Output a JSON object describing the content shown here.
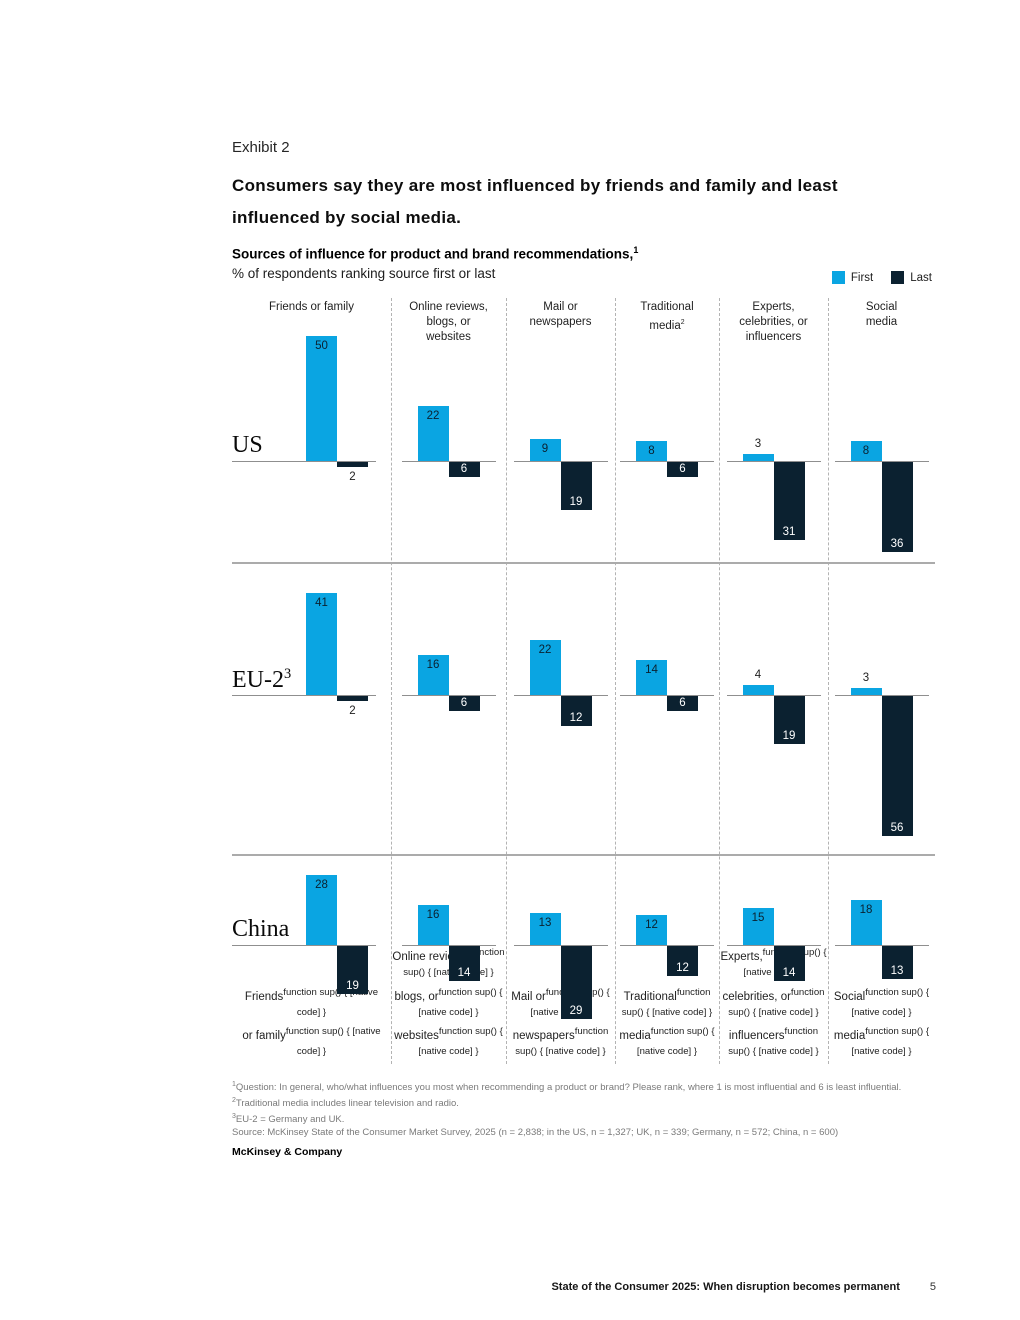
{
  "page": {
    "exhibit_label": "Exhibit 2",
    "title_lines": [
      "Consumers say they are most influenced by friends and family and least",
      "influenced by social media."
    ],
    "brand": "McKinsey & Company",
    "footer_title": "State of the Consumer 2025: When disruption becomes permanent",
    "footer_page": "5"
  },
  "colors": {
    "first": "#0AA5E2",
    "last": "#0B2130"
  },
  "chart_data": {
    "type": "bar",
    "title": "Sources of influence for product and brand recommendations,",
    "title_sup": "1",
    "subtitle": "% of respondents ranking source first or last",
    "legend": [
      "First",
      "Last"
    ],
    "legend_position": "top-right",
    "orientation": "diverging vertical: First above baseline, Last below baseline",
    "value_unit": "%",
    "categories": [
      "Friends or family",
      "Online reviews, blogs, or websites",
      "Mail or newspapers",
      "Traditional media",
      "Experts, celebrities, or influencers",
      "Social media"
    ],
    "groups": [
      {
        "region": "US",
        "region_sup": "",
        "series": [
          {
            "name": "First",
            "values": [
              50,
              22,
              9,
              8,
              3,
              8
            ]
          },
          {
            "name": "Last",
            "values": [
              2,
              6,
              19,
              6,
              31,
              36
            ]
          }
        ]
      },
      {
        "region": "EU-2",
        "region_sup": "3",
        "series": [
          {
            "name": "First",
            "values": [
              41,
              16,
              22,
              14,
              4,
              3
            ]
          },
          {
            "name": "Last",
            "values": [
              2,
              6,
              12,
              6,
              19,
              56
            ]
          }
        ]
      },
      {
        "region": "China",
        "region_sup": "",
        "series": [
          {
            "name": "First",
            "values": [
              28,
              16,
              13,
              12,
              15,
              18
            ]
          },
          {
            "name": "Last",
            "values": [
              19,
              14,
              29,
              12,
              14,
              13
            ]
          }
        ]
      }
    ]
  },
  "columns": {
    "top_labels": [
      [
        {
          "t": "Friends or family"
        }
      ],
      [
        {
          "t": "Online reviews,"
        },
        {
          "t": "blogs, or"
        },
        {
          "t": "websites"
        }
      ],
      [
        {
          "t": "Mail or"
        },
        {
          "t": "newspapers"
        }
      ],
      [
        {
          "t": "Traditional"
        },
        {
          "t": "media",
          "sup": "2"
        }
      ],
      [
        {
          "t": "Experts,"
        },
        {
          "t": "celebrities, or"
        },
        {
          "t": "influencers"
        }
      ],
      [
        {
          "t": "Social"
        },
        {
          "t": "media"
        }
      ]
    ],
    "bottom_labels": [
      [
        "Friends",
        "or family"
      ],
      [
        "Online reviews,",
        "blogs, or",
        "websites"
      ],
      [
        "Mail or",
        "newspapers"
      ],
      [
        "Traditional",
        "media"
      ],
      [
        "Experts,",
        "celebrities, or",
        "influencers"
      ],
      [
        "Social",
        "media"
      ]
    ]
  },
  "footnotes": [
    {
      "sup": "1",
      "text": "Question: In general, who/what influences you most when recommending a product or brand? Please rank, where 1 is most influential and 6 is least influential."
    },
    {
      "sup": "2",
      "text": "Traditional media includes linear television and radio."
    },
    {
      "sup": "3",
      "text": "EU-2 = Germany and UK."
    },
    {
      "sup": "",
      "text": " Source: McKinsey State of the Consumer Market Survey, 2025 (n = 2,838; in the US, n = 1,327; UK, n = 339; Germany, n = 572; China, n = 600)"
    }
  ]
}
